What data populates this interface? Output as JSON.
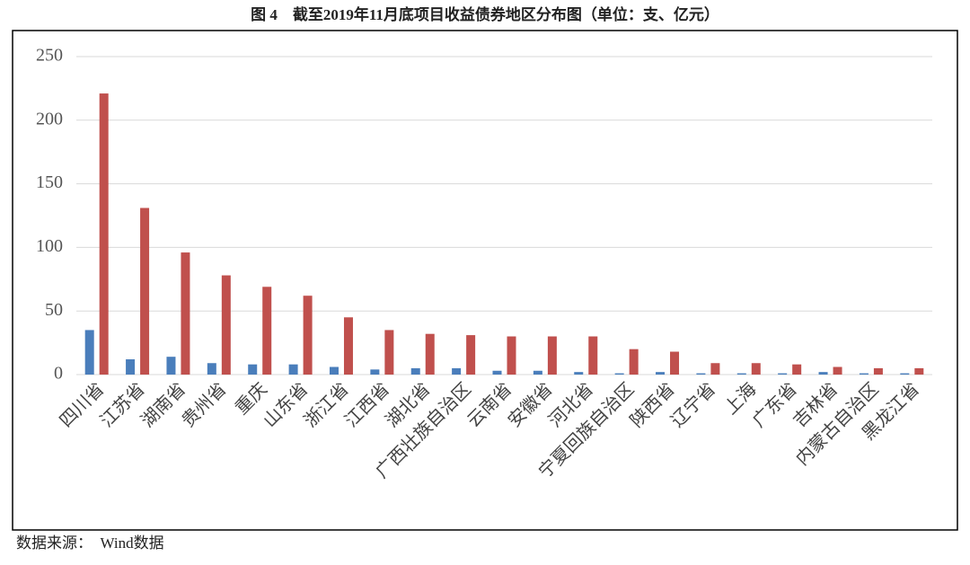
{
  "chart_data": {
    "type": "bar",
    "title": "图 4　截至2019年11月底项目收益债券地区分布图（单位：支、亿元）",
    "source": "数据来源：　Wind数据",
    "categories": [
      "四川省",
      "江苏省",
      "湖南省",
      "贵州省",
      "重庆",
      "山东省",
      "浙江省",
      "江西省",
      "湖北省",
      "广西壮族自治区",
      "云南省",
      "安徽省",
      "河北省",
      "宁夏回族自治区",
      "陕西省",
      "辽宁省",
      "上海",
      "广东省",
      "吉林省",
      "内蒙古自治区",
      "黑龙江省"
    ],
    "series": [
      {
        "color": "#4a7ebb",
        "values": [
          35,
          12,
          14,
          9,
          8,
          8,
          6,
          4,
          5,
          5,
          3,
          3,
          2,
          1,
          2,
          1,
          1,
          1,
          2,
          1,
          1
        ]
      },
      {
        "color": "#c0504d",
        "values": [
          221,
          131,
          96,
          78,
          69,
          62,
          45,
          35,
          32,
          31,
          30,
          30,
          30,
          20,
          18,
          9,
          9,
          8,
          6,
          5,
          5
        ]
      }
    ],
    "ylim": [
      0,
      250
    ],
    "yticks": [
      0,
      50,
      100,
      150,
      200,
      250
    ],
    "grid": true
  }
}
